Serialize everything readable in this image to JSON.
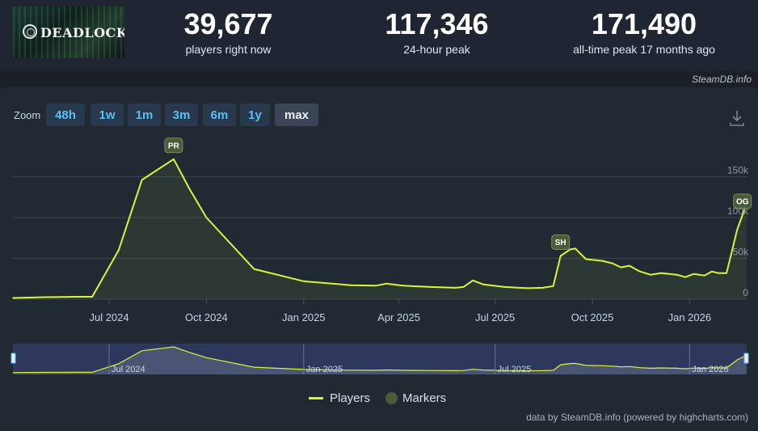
{
  "game": {
    "logo_text": "DEADLOCK"
  },
  "stats": [
    {
      "value": "39,677",
      "label": "players right now"
    },
    {
      "value": "117,346",
      "label": "24-hour peak"
    },
    {
      "value": "171,490",
      "label": "all-time peak 17 months ago"
    }
  ],
  "source": "SteamDB.info",
  "zoom": {
    "label": "Zoom",
    "options": [
      "48h",
      "1w",
      "1m",
      "3m",
      "6m",
      "1y",
      "max"
    ],
    "selected": "max"
  },
  "icons": {
    "download": "download-icon"
  },
  "colors": {
    "series": "#d9f53a",
    "marker": "#4b5a3a",
    "navigator_bg": "#3a4680"
  },
  "legend": {
    "players": "Players",
    "markers": "Markers"
  },
  "credit": "data by SteamDB.info (powered by highcharts.com)",
  "chart_data": {
    "type": "line",
    "x_axis_labels": [
      "Jul 2024",
      "Oct 2024",
      "Jan 2025",
      "Apr 2025",
      "Jul 2025",
      "Oct 2025",
      "Jan 2026"
    ],
    "y_axis_labels": [
      "0",
      "50k",
      "100k",
      "150k"
    ],
    "ylim": [
      0,
      150000
    ],
    "grid": true,
    "legend_position": "bottom",
    "series": [
      {
        "name": "Players",
        "points": [
          [
            "2024-04-01",
            1500
          ],
          [
            "2024-05-01",
            2500
          ],
          [
            "2024-06-01",
            3000
          ],
          [
            "2024-06-15",
            3000
          ],
          [
            "2024-07-10",
            60000
          ],
          [
            "2024-08-01",
            146000
          ],
          [
            "2024-08-31",
            171490
          ],
          [
            "2024-09-15",
            135000
          ],
          [
            "2024-10-01",
            100000
          ],
          [
            "2024-11-15",
            37000
          ],
          [
            "2025-01-01",
            22000
          ],
          [
            "2025-02-15",
            17000
          ],
          [
            "2025-03-10",
            16500
          ],
          [
            "2025-03-20",
            19000
          ],
          [
            "2025-04-05",
            16500
          ],
          [
            "2025-05-01",
            15000
          ],
          [
            "2025-05-25",
            14000
          ],
          [
            "2025-06-01",
            15000
          ],
          [
            "2025-06-10",
            23000
          ],
          [
            "2025-06-20",
            18000
          ],
          [
            "2025-07-10",
            15000
          ],
          [
            "2025-08-01",
            13500
          ],
          [
            "2025-08-15",
            14000
          ],
          [
            "2025-08-25",
            16000
          ],
          [
            "2025-09-01",
            53000
          ],
          [
            "2025-09-10",
            61000
          ],
          [
            "2025-09-15",
            62000
          ],
          [
            "2025-09-25",
            49000
          ],
          [
            "2025-10-10",
            47000
          ],
          [
            "2025-10-20",
            44000
          ],
          [
            "2025-10-28",
            39000
          ],
          [
            "2025-11-05",
            41000
          ],
          [
            "2025-11-15",
            34000
          ],
          [
            "2025-11-25",
            30000
          ],
          [
            "2025-12-05",
            32000
          ],
          [
            "2025-12-20",
            30000
          ],
          [
            "2025-12-28",
            27000
          ],
          [
            "2026-01-05",
            31000
          ],
          [
            "2026-01-15",
            29000
          ],
          [
            "2026-01-22",
            34000
          ],
          [
            "2026-01-28",
            32000
          ],
          [
            "2026-02-05",
            32000
          ],
          [
            "2026-02-15",
            85000
          ],
          [
            "2026-02-24",
            117346
          ]
        ]
      }
    ],
    "markers": [
      {
        "label": "PR",
        "date": "2024-08-31"
      },
      {
        "label": "SH",
        "date": "2025-09-01"
      },
      {
        "label": "OG",
        "date": "2026-02-20"
      }
    ],
    "navigator": {
      "x_axis_labels": [
        "Jul 2024",
        "Jan 2025",
        "Jul 2025",
        "Jan 2026"
      ]
    }
  }
}
